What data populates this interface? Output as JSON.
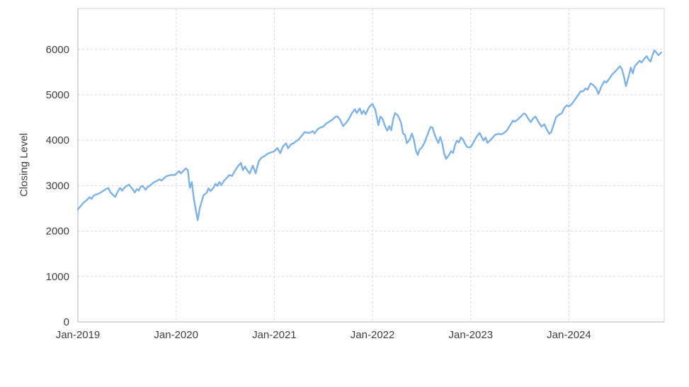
{
  "chart_data": {
    "type": "line",
    "ylabel": "Closing Level",
    "xlabel": "",
    "x_domain": [
      2019.0,
      2024.97
    ],
    "y_domain": [
      0,
      6900
    ],
    "yticks": [
      0,
      1000,
      2000,
      3000,
      4000,
      5000,
      6000
    ],
    "xticks": [
      {
        "label": "Jan-2019",
        "x": 2019.0
      },
      {
        "label": "Jan-2020",
        "x": 2020.0
      },
      {
        "label": "Jan-2021",
        "x": 2021.0
      },
      {
        "label": "Jan-2022",
        "x": 2022.0
      },
      {
        "label": "Jan-2023",
        "x": 2023.0
      },
      {
        "label": "Jan-2024",
        "x": 2024.0
      }
    ],
    "grid": true,
    "legend": false,
    "line_color": "#7fb2e5",
    "grid_color": "#d9d9d9",
    "axis_color": "#b3b3b3",
    "text_color": "#404040",
    "series": [
      {
        "name": "Closing Level",
        "points": [
          [
            2019.0,
            2480
          ],
          [
            2019.03,
            2555
          ],
          [
            2019.06,
            2630
          ],
          [
            2019.09,
            2680
          ],
          [
            2019.12,
            2745
          ],
          [
            2019.14,
            2710
          ],
          [
            2019.16,
            2780
          ],
          [
            2019.2,
            2815
          ],
          [
            2019.23,
            2845
          ],
          [
            2019.26,
            2890
          ],
          [
            2019.29,
            2930
          ],
          [
            2019.31,
            2945
          ],
          [
            2019.33,
            2860
          ],
          [
            2019.36,
            2790
          ],
          [
            2019.38,
            2750
          ],
          [
            2019.41,
            2890
          ],
          [
            2019.43,
            2950
          ],
          [
            2019.45,
            2890
          ],
          [
            2019.48,
            2970
          ],
          [
            2019.5,
            2995
          ],
          [
            2019.52,
            3025
          ],
          [
            2019.55,
            2940
          ],
          [
            2019.58,
            2850
          ],
          [
            2019.6,
            2925
          ],
          [
            2019.62,
            2890
          ],
          [
            2019.64,
            2980
          ],
          [
            2019.66,
            2995
          ],
          [
            2019.69,
            2910
          ],
          [
            2019.71,
            2970
          ],
          [
            2019.74,
            3010
          ],
          [
            2019.77,
            3070
          ],
          [
            2019.8,
            3100
          ],
          [
            2019.83,
            3140
          ],
          [
            2019.85,
            3110
          ],
          [
            2019.87,
            3150
          ],
          [
            2019.9,
            3205
          ],
          [
            2019.93,
            3225
          ],
          [
            2019.96,
            3240
          ],
          [
            2019.98,
            3230
          ],
          [
            2020.0,
            3260
          ],
          [
            2020.03,
            3320
          ],
          [
            2020.05,
            3270
          ],
          [
            2020.08,
            3340
          ],
          [
            2020.1,
            3380
          ],
          [
            2020.12,
            3340
          ],
          [
            2020.14,
            2950
          ],
          [
            2020.16,
            3080
          ],
          [
            2020.18,
            2710
          ],
          [
            2020.2,
            2480
          ],
          [
            2020.22,
            2237
          ],
          [
            2020.24,
            2500
          ],
          [
            2020.26,
            2650
          ],
          [
            2020.28,
            2790
          ],
          [
            2020.31,
            2840
          ],
          [
            2020.33,
            2940
          ],
          [
            2020.35,
            2880
          ],
          [
            2020.38,
            2950
          ],
          [
            2020.4,
            3040
          ],
          [
            2020.42,
            2990
          ],
          [
            2020.44,
            3080
          ],
          [
            2020.46,
            3010
          ],
          [
            2020.49,
            3115
          ],
          [
            2020.52,
            3180
          ],
          [
            2020.54,
            3230
          ],
          [
            2020.57,
            3215
          ],
          [
            2020.6,
            3330
          ],
          [
            2020.63,
            3430
          ],
          [
            2020.66,
            3500
          ],
          [
            2020.68,
            3340
          ],
          [
            2020.7,
            3420
          ],
          [
            2020.73,
            3320
          ],
          [
            2020.75,
            3270
          ],
          [
            2020.78,
            3440
          ],
          [
            2020.81,
            3270
          ],
          [
            2020.84,
            3530
          ],
          [
            2020.87,
            3620
          ],
          [
            2020.9,
            3650
          ],
          [
            2020.93,
            3700
          ],
          [
            2020.96,
            3725
          ],
          [
            2021.0,
            3756
          ],
          [
            2021.03,
            3830
          ],
          [
            2021.06,
            3715
          ],
          [
            2021.09,
            3870
          ],
          [
            2021.12,
            3930
          ],
          [
            2021.14,
            3820
          ],
          [
            2021.17,
            3910
          ],
          [
            2021.2,
            3940
          ],
          [
            2021.22,
            3975
          ],
          [
            2021.25,
            4020
          ],
          [
            2021.28,
            4100
          ],
          [
            2021.31,
            4180
          ],
          [
            2021.34,
            4160
          ],
          [
            2021.37,
            4170
          ],
          [
            2021.39,
            4200
          ],
          [
            2021.41,
            4150
          ],
          [
            2021.44,
            4240
          ],
          [
            2021.47,
            4280
          ],
          [
            2021.5,
            4300
          ],
          [
            2021.53,
            4370
          ],
          [
            2021.56,
            4410
          ],
          [
            2021.59,
            4450
          ],
          [
            2021.62,
            4510
          ],
          [
            2021.64,
            4530
          ],
          [
            2021.67,
            4450
          ],
          [
            2021.7,
            4310
          ],
          [
            2021.73,
            4380
          ],
          [
            2021.76,
            4470
          ],
          [
            2021.79,
            4600
          ],
          [
            2021.82,
            4680
          ],
          [
            2021.84,
            4600
          ],
          [
            2021.87,
            4700
          ],
          [
            2021.89,
            4580
          ],
          [
            2021.91,
            4650
          ],
          [
            2021.93,
            4570
          ],
          [
            2021.96,
            4710
          ],
          [
            2021.98,
            4766
          ],
          [
            2022.0,
            4796
          ],
          [
            2022.03,
            4660
          ],
          [
            2022.06,
            4330
          ],
          [
            2022.08,
            4520
          ],
          [
            2022.1,
            4480
          ],
          [
            2022.13,
            4300
          ],
          [
            2022.15,
            4210
          ],
          [
            2022.17,
            4310
          ],
          [
            2022.19,
            4220
          ],
          [
            2022.21,
            4460
          ],
          [
            2022.23,
            4600
          ],
          [
            2022.26,
            4540
          ],
          [
            2022.29,
            4390
          ],
          [
            2022.31,
            4150
          ],
          [
            2022.33,
            4120
          ],
          [
            2022.35,
            3935
          ],
          [
            2022.38,
            4020
          ],
          [
            2022.4,
            4150
          ],
          [
            2022.42,
            4020
          ],
          [
            2022.44,
            3790
          ],
          [
            2022.46,
            3675
          ],
          [
            2022.48,
            3800
          ],
          [
            2022.5,
            3830
          ],
          [
            2022.53,
            3950
          ],
          [
            2022.56,
            4120
          ],
          [
            2022.59,
            4290
          ],
          [
            2022.61,
            4280
          ],
          [
            2022.63,
            4140
          ],
          [
            2022.65,
            4030
          ],
          [
            2022.67,
            3940
          ],
          [
            2022.69,
            4070
          ],
          [
            2022.71,
            3930
          ],
          [
            2022.73,
            3700
          ],
          [
            2022.75,
            3590
          ],
          [
            2022.78,
            3680
          ],
          [
            2022.8,
            3760
          ],
          [
            2022.82,
            3720
          ],
          [
            2022.84,
            3900
          ],
          [
            2022.86,
            3990
          ],
          [
            2022.88,
            3950
          ],
          [
            2022.9,
            4060
          ],
          [
            2022.92,
            4020
          ],
          [
            2022.94,
            3930
          ],
          [
            2022.96,
            3860
          ],
          [
            2022.98,
            3840
          ],
          [
            2023.0,
            3850
          ],
          [
            2023.03,
            3960
          ],
          [
            2023.06,
            4080
          ],
          [
            2023.09,
            4160
          ],
          [
            2023.11,
            4080
          ],
          [
            2023.13,
            3990
          ],
          [
            2023.15,
            4060
          ],
          [
            2023.17,
            3940
          ],
          [
            2023.19,
            3980
          ],
          [
            2023.22,
            4050
          ],
          [
            2023.25,
            4120
          ],
          [
            2023.28,
            4140
          ],
          [
            2023.31,
            4130
          ],
          [
            2023.34,
            4160
          ],
          [
            2023.37,
            4220
          ],
          [
            2023.4,
            4330
          ],
          [
            2023.43,
            4430
          ],
          [
            2023.45,
            4410
          ],
          [
            2023.48,
            4460
          ],
          [
            2023.51,
            4520
          ],
          [
            2023.54,
            4590
          ],
          [
            2023.56,
            4570
          ],
          [
            2023.59,
            4460
          ],
          [
            2023.61,
            4400
          ],
          [
            2023.64,
            4490
          ],
          [
            2023.66,
            4520
          ],
          [
            2023.69,
            4400
          ],
          [
            2023.72,
            4300
          ],
          [
            2023.75,
            4350
          ],
          [
            2023.77,
            4250
          ],
          [
            2023.8,
            4140
          ],
          [
            2023.82,
            4180
          ],
          [
            2023.85,
            4380
          ],
          [
            2023.87,
            4510
          ],
          [
            2023.9,
            4560
          ],
          [
            2023.93,
            4600
          ],
          [
            2023.95,
            4700
          ],
          [
            2023.98,
            4770
          ],
          [
            2024.0,
            4745
          ],
          [
            2024.03,
            4800
          ],
          [
            2024.06,
            4890
          ],
          [
            2024.09,
            4980
          ],
          [
            2024.12,
            5080
          ],
          [
            2024.14,
            5070
          ],
          [
            2024.17,
            5140
          ],
          [
            2024.19,
            5110
          ],
          [
            2024.22,
            5250
          ],
          [
            2024.25,
            5210
          ],
          [
            2024.28,
            5130
          ],
          [
            2024.3,
            5020
          ],
          [
            2024.33,
            5180
          ],
          [
            2024.36,
            5300
          ],
          [
            2024.38,
            5270
          ],
          [
            2024.41,
            5350
          ],
          [
            2024.44,
            5450
          ],
          [
            2024.47,
            5510
          ],
          [
            2024.5,
            5580
          ],
          [
            2024.52,
            5630
          ],
          [
            2024.54,
            5560
          ],
          [
            2024.56,
            5400
          ],
          [
            2024.58,
            5190
          ],
          [
            2024.61,
            5420
          ],
          [
            2024.63,
            5600
          ],
          [
            2024.65,
            5470
          ],
          [
            2024.67,
            5630
          ],
          [
            2024.7,
            5700
          ],
          [
            2024.72,
            5750
          ],
          [
            2024.74,
            5710
          ],
          [
            2024.77,
            5800
          ],
          [
            2024.79,
            5850
          ],
          [
            2024.81,
            5780
          ],
          [
            2024.83,
            5730
          ],
          [
            2024.85,
            5870
          ],
          [
            2024.87,
            5980
          ],
          [
            2024.89,
            5930
          ],
          [
            2024.91,
            5870
          ],
          [
            2024.94,
            5930
          ]
        ]
      }
    ]
  }
}
